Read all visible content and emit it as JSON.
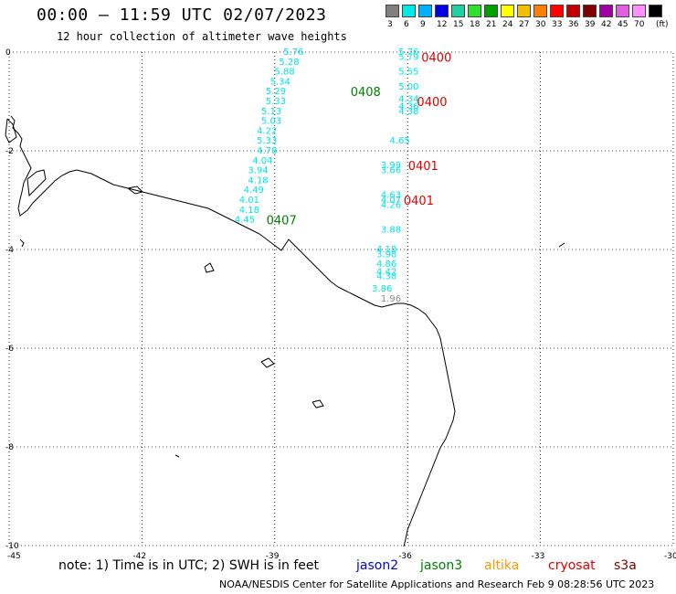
{
  "header": {
    "title": "00:00 – 11:59 UTC 02/07/2023",
    "subtitle": "12 hour collection of altimeter wave heights"
  },
  "legend": {
    "unit_label": "(ft)",
    "bins": [
      {
        "label": "3",
        "color": "#808080"
      },
      {
        "label": "6",
        "color": "#00e8e8"
      },
      {
        "label": "9",
        "color": "#00b0ff"
      },
      {
        "label": "12",
        "color": "#0000e0"
      },
      {
        "label": "15",
        "color": "#20d0a0"
      },
      {
        "label": "18",
        "color": "#30e030"
      },
      {
        "label": "21",
        "color": "#00a000"
      },
      {
        "label": "24",
        "color": "#ffff00"
      },
      {
        "label": "27",
        "color": "#f0c000"
      },
      {
        "label": "30",
        "color": "#ff8000"
      },
      {
        "label": "33",
        "color": "#ff0000"
      },
      {
        "label": "36",
        "color": "#c00000"
      },
      {
        "label": "39",
        "color": "#800000"
      },
      {
        "label": "42",
        "color": "#a000a0"
      },
      {
        "label": "45",
        "color": "#e060e0"
      },
      {
        "label": "70",
        "color": "#ff90ff"
      },
      {
        "label": "",
        "color": "#000000"
      }
    ]
  },
  "axes": {
    "lon_ticks": [
      "-45",
      "-42",
      "-39",
      "-36",
      "-33",
      "-30"
    ],
    "lat_ticks": [
      "0",
      "-2",
      "-4",
      "-6",
      "-8",
      "-10"
    ]
  },
  "colors": {
    "cyan": "#00e5e5",
    "gray": "#8c8c8c",
    "green": "#008000",
    "red": "#e00000",
    "jason2": "#0000e0",
    "jason3": "#008000",
    "altika": "#ff9900",
    "cryosat": "#e00000",
    "s3a": "#800000"
  },
  "map": {
    "wave_labels": [
      {
        "text": "5.76",
        "lon": -38.6,
        "lat": 0.0,
        "color": "cyan"
      },
      {
        "text": "5.28",
        "lon": -38.7,
        "lat": -0.2,
        "color": "cyan"
      },
      {
        "text": "5.88",
        "lon": -38.8,
        "lat": -0.4,
        "color": "cyan"
      },
      {
        "text": "5.34",
        "lon": -38.9,
        "lat": -0.6,
        "color": "cyan"
      },
      {
        "text": "5.29",
        "lon": -39.0,
        "lat": -0.8,
        "color": "cyan"
      },
      {
        "text": "5.33",
        "lon": -39.0,
        "lat": -1.0,
        "color": "cyan"
      },
      {
        "text": "5.13",
        "lon": -39.1,
        "lat": -1.2,
        "color": "cyan"
      },
      {
        "text": "5.03",
        "lon": -39.1,
        "lat": -1.4,
        "color": "cyan"
      },
      {
        "text": "4.22",
        "lon": -39.2,
        "lat": -1.6,
        "color": "cyan"
      },
      {
        "text": "5.33",
        "lon": -39.2,
        "lat": -1.8,
        "color": "cyan"
      },
      {
        "text": "4.78",
        "lon": -39.2,
        "lat": -2.0,
        "color": "cyan"
      },
      {
        "text": "4.04",
        "lon": -39.3,
        "lat": -2.2,
        "color": "cyan"
      },
      {
        "text": "3.94",
        "lon": -39.4,
        "lat": -2.4,
        "color": "cyan"
      },
      {
        "text": "4.18",
        "lon": -39.4,
        "lat": -2.6,
        "color": "cyan"
      },
      {
        "text": "4.49",
        "lon": -39.5,
        "lat": -2.8,
        "color": "cyan"
      },
      {
        "text": "4.01",
        "lon": -39.6,
        "lat": -3.0,
        "color": "cyan"
      },
      {
        "text": "4.18",
        "lon": -39.6,
        "lat": -3.2,
        "color": "cyan"
      },
      {
        "text": "4.45",
        "lon": -39.7,
        "lat": -3.4,
        "color": "cyan"
      },
      {
        "text": "5.76",
        "lon": -36.0,
        "lat": 0.0,
        "color": "cyan"
      },
      {
        "text": "5.79",
        "lon": -36.0,
        "lat": -0.1,
        "color": "cyan"
      },
      {
        "text": "5.55",
        "lon": -36.0,
        "lat": -0.4,
        "color": "cyan"
      },
      {
        "text": "5.00",
        "lon": -36.0,
        "lat": -0.7,
        "color": "cyan"
      },
      {
        "text": "4.34",
        "lon": -36.0,
        "lat": -0.95,
        "color": "cyan"
      },
      {
        "text": "4.36",
        "lon": -36.0,
        "lat": -1.1,
        "color": "cyan"
      },
      {
        "text": "4.38",
        "lon": -36.0,
        "lat": -1.2,
        "color": "cyan"
      },
      {
        "text": "4.65",
        "lon": -36.2,
        "lat": -1.8,
        "color": "cyan"
      },
      {
        "text": "3.99",
        "lon": -36.4,
        "lat": -2.3,
        "color": "cyan"
      },
      {
        "text": "3.66",
        "lon": -36.4,
        "lat": -2.4,
        "color": "cyan"
      },
      {
        "text": "4.63",
        "lon": -36.4,
        "lat": -2.9,
        "color": "cyan"
      },
      {
        "text": "4.07",
        "lon": -36.4,
        "lat": -3.0,
        "color": "cyan"
      },
      {
        "text": "4.26",
        "lon": -36.4,
        "lat": -3.1,
        "color": "cyan"
      },
      {
        "text": "3.88",
        "lon": -36.4,
        "lat": -3.6,
        "color": "cyan"
      },
      {
        "text": "4.18",
        "lon": -36.5,
        "lat": -4.0,
        "color": "cyan"
      },
      {
        "text": "3.98",
        "lon": -36.5,
        "lat": -4.1,
        "color": "cyan"
      },
      {
        "text": "4.86",
        "lon": -36.5,
        "lat": -4.3,
        "color": "cyan"
      },
      {
        "text": "4.42",
        "lon": -36.5,
        "lat": -4.45,
        "color": "cyan"
      },
      {
        "text": "4.38",
        "lon": -36.5,
        "lat": -4.55,
        "color": "cyan"
      },
      {
        "text": "3.86",
        "lon": -36.6,
        "lat": -4.8,
        "color": "cyan"
      },
      {
        "text": "1.96",
        "lon": -36.4,
        "lat": -5.0,
        "color": "gray"
      }
    ],
    "time_labels": [
      {
        "text": "0408",
        "lon": -37.0,
        "lat": -0.8,
        "color": "green"
      },
      {
        "text": "0407",
        "lon": -38.9,
        "lat": -3.4,
        "color": "green"
      },
      {
        "text": "0400",
        "lon": -35.4,
        "lat": -0.1,
        "color": "red"
      },
      {
        "text": "0400",
        "lon": -35.5,
        "lat": -1.0,
        "color": "red"
      },
      {
        "text": "0401",
        "lon": -35.7,
        "lat": -2.3,
        "color": "red"
      },
      {
        "text": "0401",
        "lon": -35.8,
        "lat": -3.0,
        "color": "red"
      }
    ]
  },
  "footer": {
    "note": "note: 1) Time is in UTC; 2) SWH is in feet",
    "jason2": "jason2",
    "jason3": "jason3",
    "altika": "altika",
    "cryosat": "cryosat",
    "s3a": "s3a",
    "credit": "NOAA/NESDIS Center for Satellite Applications and Research   Feb  9 08:28:56 UTC 2023"
  }
}
